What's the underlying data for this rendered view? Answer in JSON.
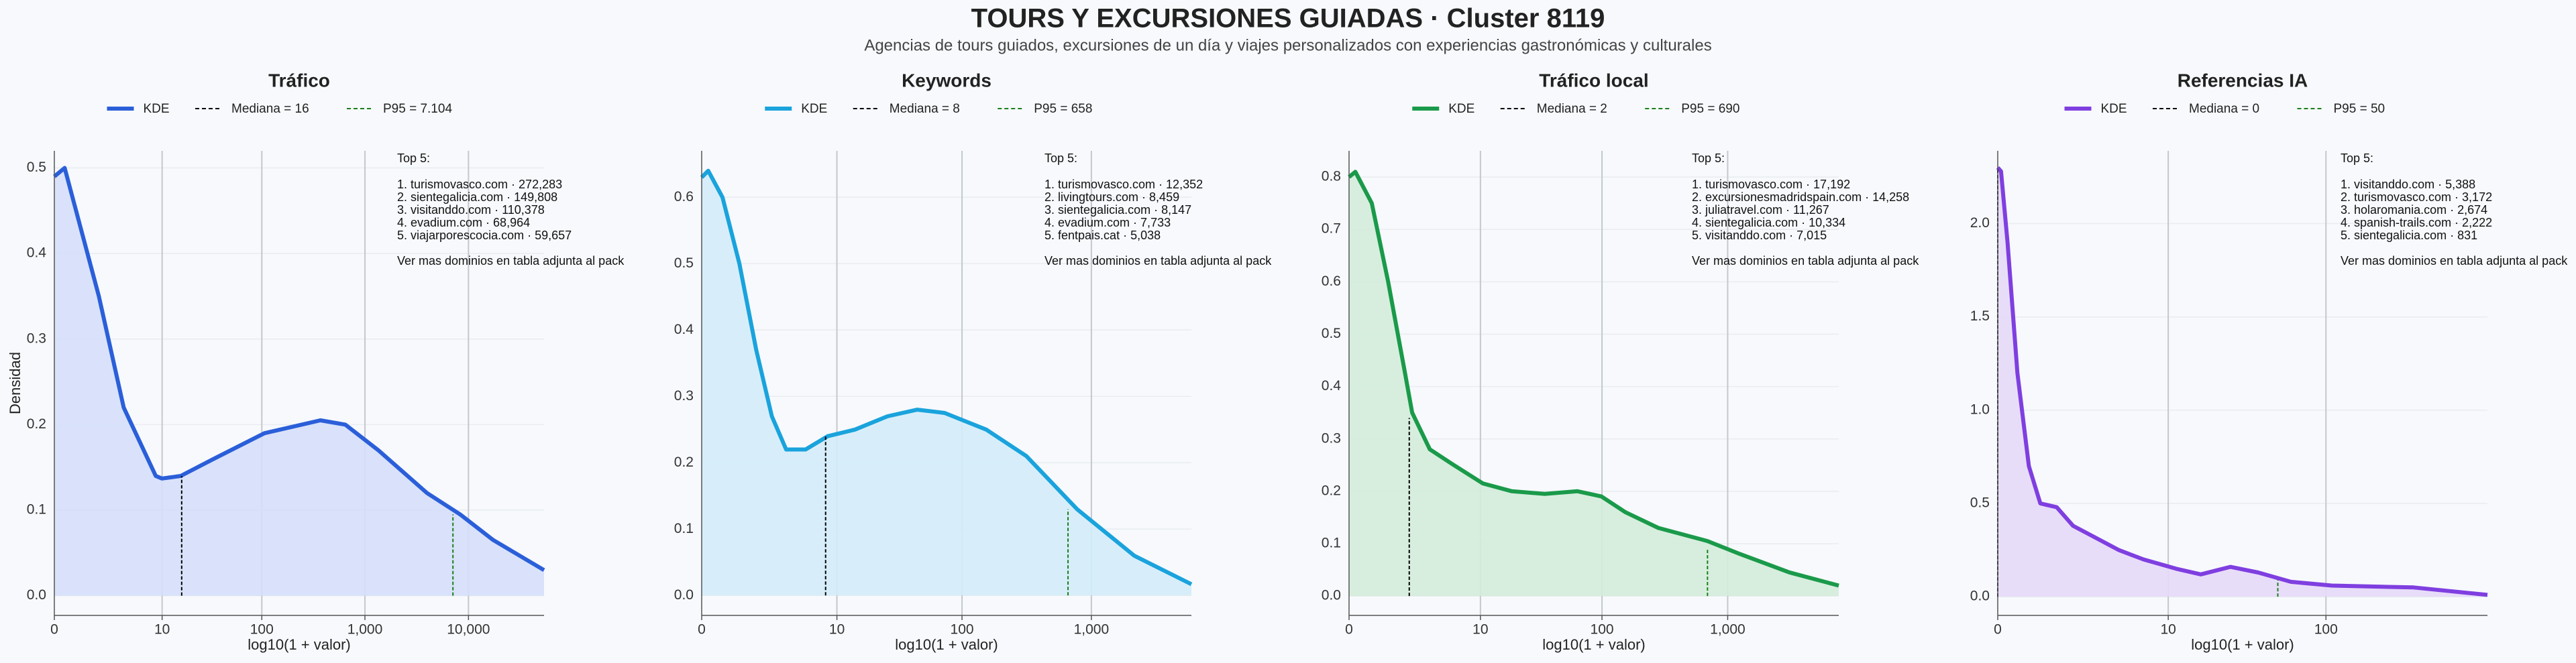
{
  "header": {
    "title": "TOURS Y EXCURSIONES GUIADAS · Cluster 8119",
    "subtitle": "Agencias de tours guiados, excursiones de un día y viajes personalizados con experiencias gastronómicas y culturales"
  },
  "chart_data": [
    {
      "type": "line",
      "title": "Tráfico",
      "xlabel": "log10(1 + valor)",
      "ylabel": "Densidad",
      "x": [
        0,
        0.1,
        0.43,
        0.67,
        0.98,
        1.04,
        1.22,
        1.54,
        2.03,
        2.57,
        2.81,
        3.13,
        3.6,
        3.92,
        4.24,
        4.73
      ],
      "series": [
        {
          "name": "KDE",
          "color": "#2b5fd9",
          "fill": "#d5dffa",
          "values": [
            0.49,
            0.5,
            0.35,
            0.22,
            0.14,
            0.137,
            0.14,
            0.16,
            0.19,
            0.205,
            0.2,
            0.17,
            0.12,
            0.095,
            0.065,
            0.03
          ]
        }
      ],
      "vlines": [
        {
          "name": "Mediana = 16",
          "x": 1.23,
          "y": 0.14,
          "color": "#000000"
        },
        {
          "name": "P95 = 7.104",
          "x": 3.85,
          "y": 0.095,
          "color": "#1a7f1a"
        }
      ],
      "xlim": [
        0,
        4.73
      ],
      "ylim": [
        -0.023,
        0.52
      ],
      "xticks": [
        0,
        {
          "value": 1.041,
          "label": "10"
        },
        {
          "value": 2.004,
          "label": "100"
        },
        {
          "value": 3.0,
          "label": "1,000"
        },
        {
          "value": 4.0,
          "label": "10,000"
        }
      ],
      "yticks": [
        {
          "value": 0,
          "label": "0.0"
        },
        0.1,
        0.2,
        0.3,
        0.4,
        0.5
      ],
      "grid": true,
      "annotation": {
        "title": "Top 5:",
        "lines": [
          "1. turismovasco.com · 272,283",
          "2. sientegalicia.com · 149,808",
          "3. visitanddo.com · 110,378",
          "4. evadium.com · 68,964",
          "5. viajarporescocia.com · 59,657"
        ],
        "note": "Ver mas dominios en tabla adjunta al pack"
      }
    },
    {
      "type": "line",
      "title": "Keywords",
      "xlabel": "log10(1 + valor)",
      "x": [
        0,
        0.05,
        0.16,
        0.29,
        0.42,
        0.54,
        0.65,
        0.8,
        0.97,
        1.18,
        1.43,
        1.66,
        1.87,
        2.19,
        2.5,
        2.89,
        3.33,
        3.77
      ],
      "series": [
        {
          "name": "KDE",
          "color": "#1aa3dc",
          "fill": "#d3ecf9",
          "values": [
            0.63,
            0.64,
            0.6,
            0.5,
            0.37,
            0.27,
            0.22,
            0.22,
            0.24,
            0.25,
            0.27,
            0.28,
            0.275,
            0.25,
            0.21,
            0.13,
            0.06,
            0.017
          ]
        }
      ],
      "vlines": [
        {
          "name": "Mediana = 8",
          "x": 0.954,
          "y": 0.24,
          "color": "#000000"
        },
        {
          "name": "P95 = 658",
          "x": 2.82,
          "y": 0.13,
          "color": "#1a7f1a"
        }
      ],
      "xlim": [
        0,
        3.77
      ],
      "ylim": [
        -0.03,
        0.67
      ],
      "xticks": [
        0,
        {
          "value": 1.041,
          "label": "10"
        },
        {
          "value": 2.004,
          "label": "100"
        },
        {
          "value": 3.0,
          "label": "1,000"
        }
      ],
      "yticks": [
        {
          "value": 0,
          "label": "0.0"
        },
        0.1,
        0.2,
        0.3,
        0.4,
        0.5,
        0.6
      ],
      "grid": true,
      "annotation": {
        "title": "Top 5:",
        "lines": [
          "1. turismovasco.com · 12,352",
          "2. livingtours.com · 8,459",
          "3. sientegalicia.com · 8,147",
          "4. evadium.com · 7,733",
          "5. fentpais.cat · 5,038"
        ],
        "note": "Ver mas dominios en tabla adjunta al pack"
      }
    },
    {
      "type": "line",
      "title": "Tráfico local",
      "xlabel": "log10(1 + valor)",
      "x": [
        0,
        0.05,
        0.18,
        0.31,
        0.44,
        0.5,
        0.64,
        0.83,
        1.06,
        1.29,
        1.55,
        1.81,
        2.0,
        2.19,
        2.45,
        2.84,
        3.1,
        3.49,
        3.88
      ],
      "series": [
        {
          "name": "KDE",
          "color": "#1a9a4a",
          "fill": "#d3ecda",
          "values": [
            0.8,
            0.81,
            0.75,
            0.6,
            0.43,
            0.35,
            0.28,
            0.25,
            0.215,
            0.2,
            0.195,
            0.2,
            0.19,
            0.16,
            0.13,
            0.105,
            0.08,
            0.045,
            0.02
          ]
        }
      ],
      "vlines": [
        {
          "name": "Mediana = 2",
          "x": 0.477,
          "y": 0.34,
          "color": "#000000"
        },
        {
          "name": "P95 = 690",
          "x": 2.84,
          "y": 0.09,
          "color": "#1a7f1a"
        }
      ],
      "xlim": [
        0,
        3.88
      ],
      "ylim": [
        -0.037,
        0.85
      ],
      "xticks": [
        0,
        {
          "value": 1.041,
          "label": "10"
        },
        {
          "value": 2.004,
          "label": "100"
        },
        {
          "value": 3.0,
          "label": "1,000"
        }
      ],
      "yticks": [
        {
          "value": 0,
          "label": "0.0"
        },
        0.1,
        0.2,
        0.3,
        0.4,
        0.5,
        0.6,
        0.7,
        0.8
      ],
      "grid": true,
      "annotation": {
        "title": "Top 5:",
        "lines": [
          "1. turismovasco.com · 17,192",
          "2. excursionesmadridspain.com · 14,258",
          "3. juliatravel.com · 11,267",
          "4. sientegalicia.com · 10,334",
          "5. visitanddo.com · 7,015"
        ],
        "note": "Ver mas dominios en tabla adjunta al pack"
      }
    },
    {
      "type": "line",
      "title": "Referencias IA",
      "xlabel": "log10(1 + valor)",
      "x": [
        0,
        0.02,
        0.06,
        0.12,
        0.19,
        0.26,
        0.36,
        0.46,
        0.59,
        0.74,
        0.89,
        1.09,
        1.24,
        1.42,
        1.59,
        1.79,
        2.04,
        2.54,
        2.99
      ],
      "series": [
        {
          "name": "KDE",
          "color": "#7f3fe0",
          "fill": "#e5d9f8",
          "values": [
            2.3,
            2.28,
            1.9,
            1.2,
            0.7,
            0.5,
            0.48,
            0.38,
            0.32,
            0.25,
            0.2,
            0.15,
            0.12,
            0.16,
            0.13,
            0.08,
            0.06,
            0.05,
            0.01
          ]
        }
      ],
      "vlines": [
        {
          "name": "Mediana = 0",
          "x": 0,
          "y": 2.3,
          "color": "#000000"
        },
        {
          "name": "P95 = 50",
          "x": 1.71,
          "y": 0.09,
          "color": "#1a7f1a"
        }
      ],
      "xlim": [
        0,
        2.99
      ],
      "ylim": [
        -0.1,
        2.39
      ],
      "xticks": [
        0,
        {
          "value": 1.041,
          "label": "10"
        },
        {
          "value": 2.004,
          "label": "100"
        }
      ],
      "yticks": [
        {
          "value": 0,
          "label": "0.0"
        },
        0.5,
        {
          "value": 1,
          "label": "1.0"
        },
        1.5,
        {
          "value": 2,
          "label": "2.0"
        }
      ],
      "grid": true,
      "annotation": {
        "title": "Top 5:",
        "lines": [
          "1. visitanddo.com · 5,388",
          "2. turismovasco.com · 3,172",
          "3. holaromania.com · 2,674",
          "4. spanish-trails.com · 2,222",
          "5. sientegalicia.com · 831"
        ],
        "note": "Ver mas dominios en tabla adjunta al pack"
      }
    }
  ]
}
